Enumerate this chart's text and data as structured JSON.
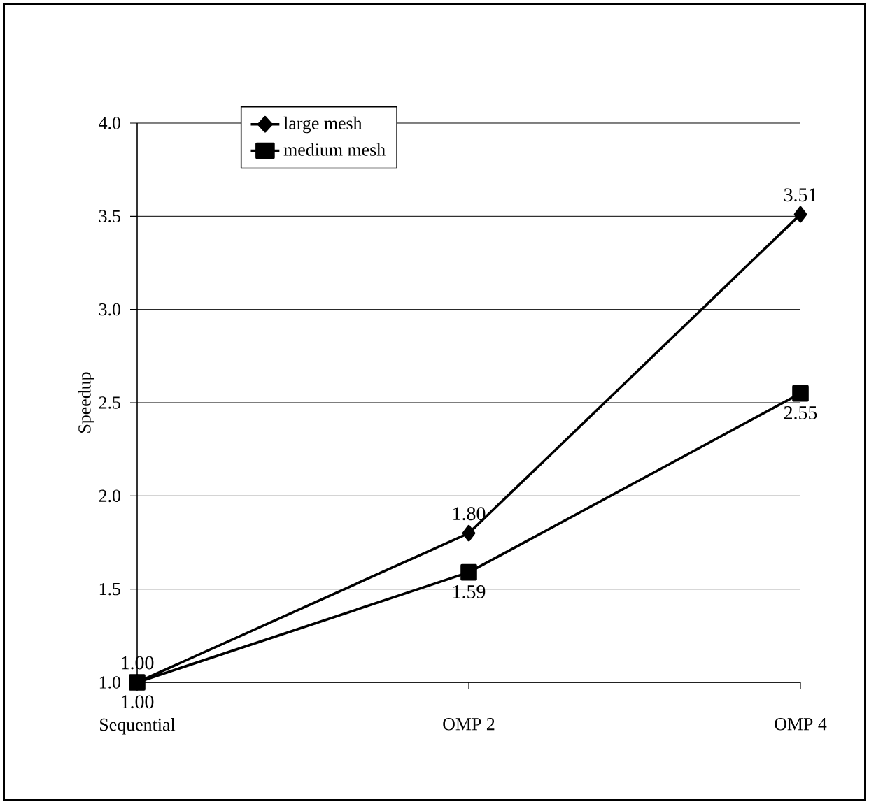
{
  "chart_data": {
    "type": "line",
    "ylabel": "Speedup",
    "categories": [
      "Sequential",
      "OMP 2",
      "OMP 4"
    ],
    "series": [
      {
        "name": "large mesh",
        "color": "#000000",
        "marker": "diamond",
        "values": [
          1.0,
          1.8,
          3.51
        ],
        "value_labels": [
          "1.00",
          "1.80",
          "3.51"
        ]
      },
      {
        "name": "medium mesh",
        "color": "#000000",
        "marker": "square",
        "values": [
          1.0,
          1.59,
          2.55
        ],
        "value_labels": [
          "1.00",
          "1.59",
          "2.55"
        ]
      }
    ],
    "ylim": [
      1.0,
      4.0
    ],
    "yticks": [
      {
        "value": 1.0,
        "label": "1.0"
      },
      {
        "value": 1.5,
        "label": "1.5"
      },
      {
        "value": 2.0,
        "label": "2.0"
      },
      {
        "value": 2.5,
        "label": "2.5"
      },
      {
        "value": 3.0,
        "label": "3.0"
      },
      {
        "value": 3.5,
        "label": "3.5"
      },
      {
        "value": 4.0,
        "label": "4.0"
      }
    ],
    "grid": "y",
    "legend": "top left",
    "line_style": "solid"
  }
}
